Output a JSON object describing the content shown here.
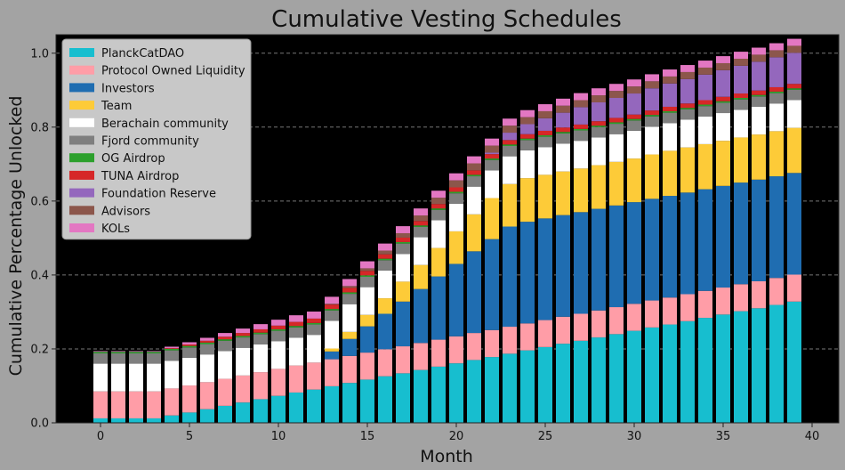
{
  "chart_data": {
    "type": "bar",
    "stacked": true,
    "title": "Cumulative Vesting Schedules",
    "xlabel": "Month",
    "ylabel": "Cumulative Percentage Unlocked",
    "xlim": [
      -2.5,
      41.5
    ],
    "ylim": [
      0,
      1.05
    ],
    "xticks": [
      0,
      5,
      10,
      15,
      20,
      25,
      30,
      35,
      40
    ],
    "yticks": [
      0.0,
      0.2,
      0.4,
      0.6,
      0.8,
      1.0
    ],
    "ytick_labels": [
      "0.0",
      "0.2",
      "0.4",
      "0.6",
      "0.8",
      "1.0"
    ],
    "grid": "horizontal dashed",
    "legend_position": "upper-left",
    "x": [
      0,
      1,
      2,
      3,
      4,
      5,
      6,
      7,
      8,
      9,
      10,
      11,
      12,
      13,
      14,
      15,
      16,
      17,
      18,
      19,
      20,
      21,
      22,
      23,
      24,
      25,
      26,
      27,
      28,
      29,
      30,
      31,
      32,
      33,
      34,
      35,
      36,
      37,
      38,
      39
    ],
    "series": [
      {
        "name": "PlanckCatDAO",
        "color": "#17becf",
        "values": [
          0.012,
          0.012,
          0.012,
          0.012,
          0.02,
          0.028,
          0.037,
          0.046,
          0.055,
          0.064,
          0.073,
          0.082,
          0.09,
          0.099,
          0.108,
          0.117,
          0.126,
          0.134,
          0.143,
          0.152,
          0.161,
          0.17,
          0.178,
          0.187,
          0.196,
          0.205,
          0.214,
          0.222,
          0.231,
          0.24,
          0.249,
          0.258,
          0.266,
          0.275,
          0.284,
          0.293,
          0.302,
          0.31,
          0.319,
          0.328
        ]
      },
      {
        "name": "Protocol Owned Liquidity",
        "color": "#ff9da7",
        "values": [
          0.073,
          0.073,
          0.073,
          0.073,
          0.073,
          0.073,
          0.073,
          0.073,
          0.073,
          0.073,
          0.073,
          0.073,
          0.073,
          0.073,
          0.073,
          0.073,
          0.073,
          0.073,
          0.073,
          0.073,
          0.073,
          0.073,
          0.073,
          0.073,
          0.073,
          0.073,
          0.073,
          0.073,
          0.073,
          0.073,
          0.073,
          0.073,
          0.073,
          0.073,
          0.073,
          0.073,
          0.073,
          0.073,
          0.073,
          0.073
        ]
      },
      {
        "name": "Investors",
        "color": "#1f6db1",
        "values": [
          0,
          0,
          0,
          0,
          0,
          0,
          0,
          0,
          0,
          0,
          0,
          0,
          0,
          0.021,
          0.046,
          0.071,
          0.096,
          0.121,
          0.146,
          0.171,
          0.196,
          0.221,
          0.246,
          0.271,
          0.275,
          0.275,
          0.275,
          0.275,
          0.275,
          0.275,
          0.275,
          0.275,
          0.275,
          0.275,
          0.275,
          0.275,
          0.275,
          0.275,
          0.275,
          0.275
        ]
      },
      {
        "name": "Team",
        "color": "#fdcb38",
        "values": [
          0,
          0,
          0,
          0,
          0,
          0,
          0,
          0,
          0,
          0,
          0,
          0,
          0,
          0.008,
          0.019,
          0.031,
          0.042,
          0.054,
          0.065,
          0.077,
          0.088,
          0.1,
          0.111,
          0.115,
          0.118,
          0.118,
          0.118,
          0.118,
          0.118,
          0.118,
          0.118,
          0.12,
          0.122,
          0.122,
          0.122,
          0.122,
          0.122,
          0.122,
          0.122,
          0.122
        ]
      },
      {
        "name": "Berachain community",
        "color": "#ffffff",
        "values": [
          0.075,
          0.075,
          0.075,
          0.075,
          0.075,
          0.075,
          0.075,
          0.075,
          0.075,
          0.075,
          0.075,
          0.075,
          0.075,
          0.075,
          0.075,
          0.075,
          0.075,
          0.075,
          0.075,
          0.075,
          0.075,
          0.075,
          0.075,
          0.075,
          0.075,
          0.075,
          0.075,
          0.075,
          0.075,
          0.075,
          0.075,
          0.075,
          0.075,
          0.075,
          0.075,
          0.075,
          0.075,
          0.075,
          0.075,
          0.075
        ]
      },
      {
        "name": "Fjord community",
        "color": "#7f7f7f",
        "values": [
          0.028,
          0.028,
          0.028,
          0.028,
          0.028,
          0.028,
          0.028,
          0.028,
          0.028,
          0.028,
          0.028,
          0.028,
          0.028,
          0.028,
          0.028,
          0.028,
          0.028,
          0.028,
          0.028,
          0.028,
          0.028,
          0.028,
          0.028,
          0.028,
          0.028,
          0.028,
          0.028,
          0.028,
          0.028,
          0.028,
          0.028,
          0.028,
          0.028,
          0.028,
          0.028,
          0.028,
          0.028,
          0.028,
          0.028,
          0.028
        ]
      },
      {
        "name": "OG Airdrop",
        "color": "#2ca02c",
        "values": [
          0.004,
          0.004,
          0.004,
          0.004,
          0.004,
          0.004,
          0.004,
          0.004,
          0.004,
          0.004,
          0.004,
          0.004,
          0.004,
          0.004,
          0.004,
          0.004,
          0.004,
          0.004,
          0.004,
          0.004,
          0.004,
          0.004,
          0.004,
          0.004,
          0.004,
          0.004,
          0.004,
          0.004,
          0.004,
          0.004,
          0.004,
          0.004,
          0.004,
          0.004,
          0.004,
          0.004,
          0.004,
          0.004,
          0.004,
          0.004
        ]
      },
      {
        "name": "TUNA Airdrop",
        "color": "#d62728",
        "values": [
          0,
          0,
          0,
          0,
          0.002,
          0.004,
          0.005,
          0.007,
          0.008,
          0.009,
          0.01,
          0.011,
          0.012,
          0.012,
          0.012,
          0.012,
          0.012,
          0.012,
          0.012,
          0.012,
          0.012,
          0.012,
          0.012,
          0.012,
          0.012,
          0.012,
          0.012,
          0.012,
          0.012,
          0.012,
          0.012,
          0.012,
          0.012,
          0.012,
          0.012,
          0.012,
          0.012,
          0.012,
          0.012,
          0.012
        ]
      },
      {
        "name": "Foundation Reserve",
        "color": "#9467bd",
        "values": [
          0,
          0,
          0,
          0,
          0,
          0,
          0,
          0,
          0,
          0,
          0,
          0,
          0,
          0,
          0,
          0,
          0,
          0,
          0,
          0,
          0,
          0,
          0.004,
          0.02,
          0.027,
          0.034,
          0.04,
          0.047,
          0.051,
          0.054,
          0.057,
          0.06,
          0.063,
          0.066,
          0.069,
          0.072,
          0.075,
          0.078,
          0.081,
          0.084
        ]
      },
      {
        "name": "Advisors",
        "color": "#8c564b",
        "values": [
          0,
          0,
          0,
          0,
          0,
          0,
          0,
          0,
          0,
          0,
          0,
          0,
          0,
          0.002,
          0.005,
          0.007,
          0.01,
          0.012,
          0.015,
          0.017,
          0.019,
          0.019,
          0.019,
          0.019,
          0.019,
          0.019,
          0.019,
          0.019,
          0.019,
          0.019,
          0.019,
          0.019,
          0.019,
          0.019,
          0.019,
          0.019,
          0.019,
          0.019,
          0.019,
          0.019
        ]
      },
      {
        "name": "KOLs",
        "color": "#e377c2",
        "values": [
          0.002,
          0.002,
          0.002,
          0.002,
          0.004,
          0.006,
          0.008,
          0.01,
          0.012,
          0.014,
          0.016,
          0.018,
          0.019,
          0.019,
          0.019,
          0.019,
          0.019,
          0.019,
          0.019,
          0.019,
          0.019,
          0.019,
          0.019,
          0.019,
          0.019,
          0.019,
          0.019,
          0.019,
          0.019,
          0.019,
          0.019,
          0.019,
          0.019,
          0.019,
          0.019,
          0.019,
          0.019,
          0.019,
          0.019,
          0.019
        ]
      }
    ]
  },
  "colors": {
    "figure_bg": "#a3a3a3",
    "plot_bg": "#000000",
    "grid": "#777777",
    "text": "#111111",
    "legend_bg": "#c8c8c8"
  }
}
